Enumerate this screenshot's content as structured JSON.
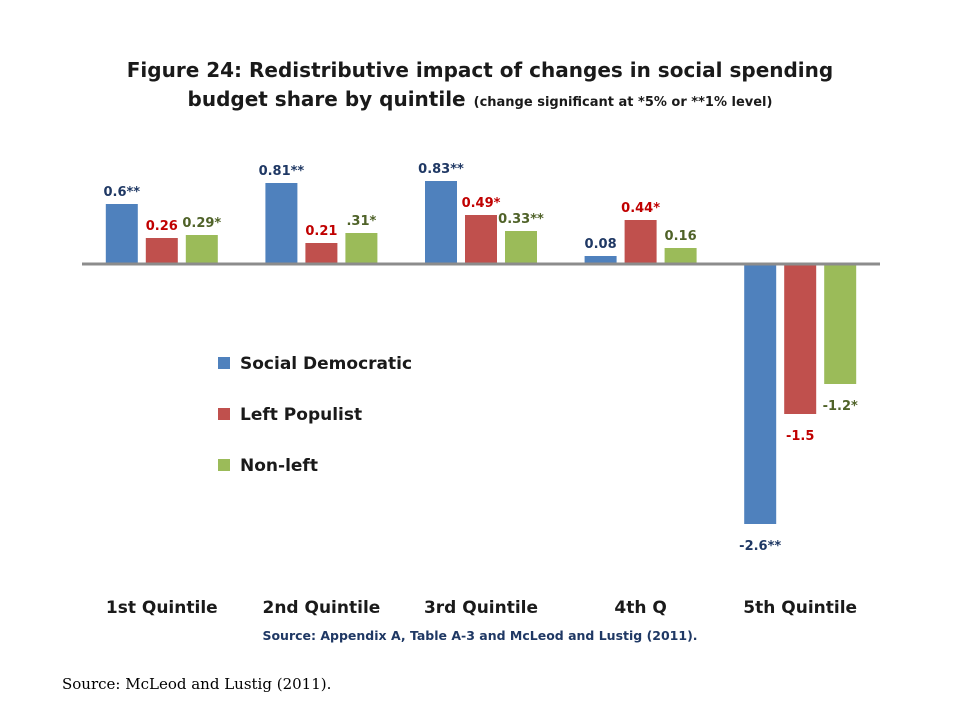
{
  "slide": {
    "source_footer": "Source: McLeod and Lustig (2011)."
  },
  "chart_data": {
    "type": "bar",
    "title": "Figure 24: Redistributive impact of changes in social spending budget share by quintile",
    "title_line1": "Figure 24: Redistributive impact of changes in social spending",
    "title_line2": "budget share by quintile",
    "subtitle": "(change significant at *5% or **1% level)",
    "source_note": "Source: Appendix A, Table A-3 and McLeod and Lustig (2011).",
    "categories": [
      "1st Quintile",
      "2nd Quintile",
      "3rd Quintile",
      "4th Q",
      "5th Quintile"
    ],
    "series": [
      {
        "name": "Social Democratic",
        "color": "#4f81bd",
        "label_color": "#1f3864",
        "values": [
          0.6,
          0.81,
          0.83,
          0.08,
          -2.6
        ],
        "labels": [
          "0.6**",
          "0.81**",
          "0.83**",
          "0.08",
          "-2.6**"
        ]
      },
      {
        "name": "Left Populist",
        "color": "#c0504d",
        "label_color": "#c00000",
        "values": [
          0.26,
          0.21,
          0.49,
          0.44,
          -1.5
        ],
        "labels": [
          "0.26",
          "0.21",
          "0.49*",
          "0.44*",
          "-1.5"
        ]
      },
      {
        "name": "Non-left",
        "color": "#9bbb59",
        "label_color": "#4f6228",
        "values": [
          0.29,
          0.31,
          0.33,
          0.16,
          -1.2
        ],
        "labels": [
          "0.29*",
          ".31*",
          "0.33**",
          "0.16",
          "-1.2*"
        ]
      }
    ],
    "legend_position": "left-middle",
    "grid": false,
    "y_axis_visible": false,
    "ylim": [
      -2.8,
      1.0
    ]
  }
}
